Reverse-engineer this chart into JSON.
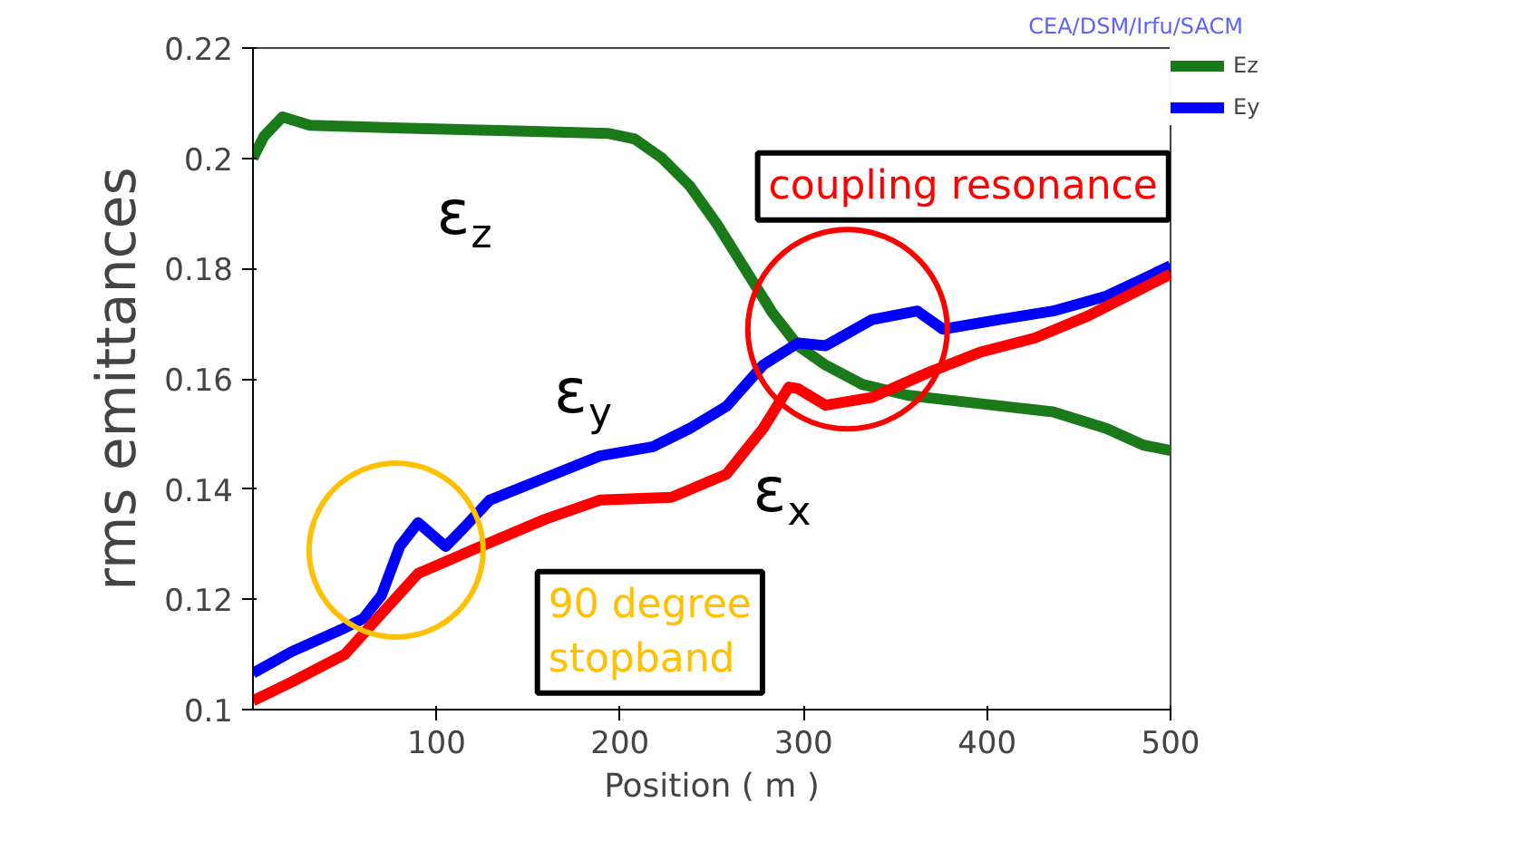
{
  "chart_data": {
    "type": "line",
    "xlabel": "Position ( m )",
    "ylabel": "rms emittances",
    "xlim": [
      0,
      500
    ],
    "xticks": [
      100,
      200,
      300,
      400,
      500
    ],
    "ylim": [
      0.1,
      0.22
    ],
    "yticks": [
      0.1,
      0.12,
      0.14,
      0.16,
      0.18,
      0.2,
      0.22
    ],
    "grid": false,
    "legend": "top right",
    "series": [
      {
        "name": "Ez",
        "color": "#1a7a1a",
        "x": [
          0,
          6,
          16,
          31,
          80,
          139,
          194,
          208,
          223,
          238,
          253,
          268,
          283,
          297,
          312,
          332,
          357,
          396,
          436,
          465,
          485,
          500
        ],
        "values": [
          0.2,
          0.204,
          0.2075,
          0.206,
          0.2055,
          0.205,
          0.2045,
          0.2035,
          0.2,
          0.195,
          0.188,
          0.18,
          0.172,
          0.166,
          0.1625,
          0.159,
          0.157,
          0.1555,
          0.154,
          0.151,
          0.148,
          0.147
        ]
      },
      {
        "name": "Ey",
        "color": "#0000ff",
        "x": [
          0,
          21,
          50,
          60,
          70,
          80,
          90,
          105,
          115,
          129,
          159,
          189,
          218,
          238,
          258,
          278,
          297,
          312,
          337,
          362,
          376,
          406,
          436,
          465,
          500
        ],
        "values": [
          0.1066,
          0.1105,
          0.1148,
          0.1165,
          0.1207,
          0.1296,
          0.1339,
          0.1296,
          0.133,
          0.138,
          0.142,
          0.146,
          0.1477,
          0.151,
          0.155,
          0.1625,
          0.1665,
          0.166,
          0.1707,
          0.1723,
          0.169,
          0.1707,
          0.1723,
          0.175,
          0.1805
        ]
      },
      {
        "color": "#ff0000",
        "x": [
          0,
          21,
          50,
          70,
          90,
          120,
          159,
          189,
          228,
          258,
          278,
          292,
          297,
          312,
          337,
          367,
          396,
          426,
          455,
          500
        ],
        "values": [
          0.1016,
          0.105,
          0.11,
          0.1174,
          0.1247,
          0.129,
          0.1345,
          0.138,
          0.1385,
          0.1427,
          0.151,
          0.1585,
          0.1582,
          0.1552,
          0.1566,
          0.161,
          0.1648,
          0.1674,
          0.1714,
          0.179
        ]
      }
    ],
    "annotations": [
      "CEA/DSM/Irfu/SACM",
      "ε$_{z}$",
      "ε$_{y}$",
      "ε$_{x}$",
      "coupling resonance",
      "90 degree\nstopband"
    ]
  }
}
